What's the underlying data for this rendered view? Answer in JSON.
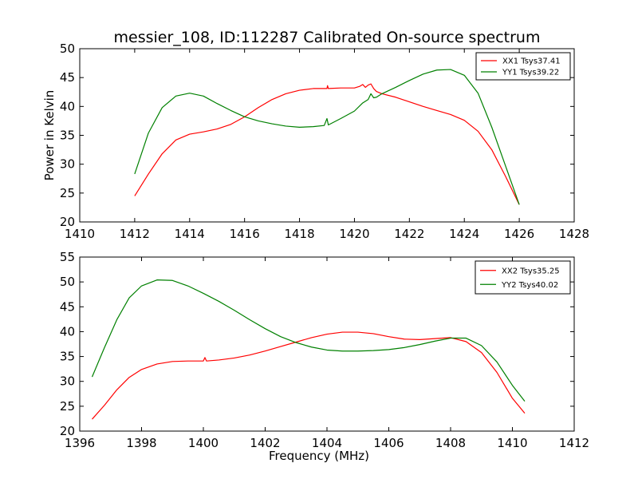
{
  "title": "messier_108, ID:112287 Calibrated On-source spectrum",
  "chart_data": [
    {
      "type": "line",
      "xlabel": "",
      "ylabel": "Power in Kelvin",
      "xlim": [
        1410,
        1428
      ],
      "ylim": [
        20,
        50
      ],
      "xticks": [
        1410,
        1412,
        1414,
        1416,
        1418,
        1420,
        1422,
        1424,
        1426,
        1428
      ],
      "yticks": [
        20,
        25,
        30,
        35,
        40,
        45,
        50
      ],
      "legend_position": "top-right",
      "series": [
        {
          "name": "XX1 Tsys37.41",
          "color": "#ff0000",
          "x": [
            1412,
            1412.5,
            1413,
            1413.5,
            1414,
            1414.5,
            1415,
            1415.5,
            1416,
            1416.5,
            1417,
            1417.5,
            1418,
            1418.5,
            1419,
            1419.02,
            1419.05,
            1419.5,
            1420,
            1420.2,
            1420.3,
            1420.4,
            1420.5,
            1420.6,
            1420.7,
            1420.8,
            1421,
            1421.5,
            1422,
            1422.5,
            1423,
            1423.5,
            1424,
            1424.5,
            1425,
            1425.5,
            1426
          ],
          "y": [
            24.5,
            28.3,
            31.8,
            34.2,
            35.2,
            35.6,
            36.1,
            36.9,
            38.2,
            39.8,
            41.2,
            42.2,
            42.8,
            43.1,
            43.1,
            43.6,
            43.1,
            43.2,
            43.2,
            43.5,
            43.8,
            43.3,
            43.7,
            43.9,
            43.1,
            42.6,
            42.2,
            41.6,
            40.8,
            40.0,
            39.3,
            38.6,
            37.6,
            35.7,
            32.5,
            27.9,
            23.0
          ]
        },
        {
          "name": "YY1 Tsys39.22",
          "color": "#008000",
          "x": [
            1412,
            1412.5,
            1413,
            1413.5,
            1414,
            1414.5,
            1415,
            1415.5,
            1416,
            1416.5,
            1417,
            1417.5,
            1418,
            1418.5,
            1418.9,
            1419,
            1419.05,
            1419.5,
            1420,
            1420.3,
            1420.5,
            1420.6,
            1420.7,
            1420.8,
            1421,
            1421.5,
            1422,
            1422.5,
            1423,
            1423.5,
            1424,
            1424.5,
            1425,
            1425.5,
            1426
          ],
          "y": [
            28.3,
            35.4,
            39.8,
            41.8,
            42.3,
            41.8,
            40.5,
            39.3,
            38.2,
            37.5,
            37.0,
            36.6,
            36.4,
            36.5,
            36.7,
            37.9,
            36.8,
            37.9,
            39.2,
            40.6,
            41.2,
            42.2,
            41.5,
            41.6,
            42.2,
            43.3,
            44.5,
            45.6,
            46.3,
            46.4,
            45.4,
            42.3,
            36.4,
            29.7,
            23.0
          ]
        }
      ]
    },
    {
      "type": "line",
      "xlabel": "Frequency (MHz)",
      "ylabel": "",
      "xlim": [
        1396,
        1412
      ],
      "ylim": [
        20,
        55
      ],
      "xticks": [
        1396,
        1398,
        1400,
        1402,
        1404,
        1406,
        1408,
        1410,
        1412
      ],
      "yticks": [
        20,
        25,
        30,
        35,
        40,
        45,
        50,
        55
      ],
      "legend_position": "top-right",
      "series": [
        {
          "name": "XX2 Tsys35.25",
          "color": "#ff0000",
          "x": [
            1396.4,
            1396.8,
            1397.2,
            1397.6,
            1398,
            1398.5,
            1399,
            1399.5,
            1400,
            1400.05,
            1400.1,
            1400.5,
            1401,
            1401.5,
            1402,
            1402.5,
            1403,
            1403.5,
            1404,
            1404.5,
            1405,
            1405.5,
            1406,
            1406.5,
            1407,
            1407.5,
            1408,
            1408.5,
            1409,
            1409.5,
            1410,
            1410.4
          ],
          "y": [
            22.4,
            25.2,
            28.3,
            30.8,
            32.4,
            33.5,
            34.0,
            34.1,
            34.1,
            34.8,
            34.1,
            34.3,
            34.7,
            35.3,
            36.1,
            37.0,
            37.9,
            38.8,
            39.5,
            39.9,
            39.9,
            39.6,
            39.0,
            38.5,
            38.4,
            38.6,
            38.8,
            38.0,
            35.8,
            31.8,
            26.6,
            23.6
          ]
        },
        {
          "name": "YY2 Tsys40.02",
          "color": "#008000",
          "x": [
            1396.4,
            1396.8,
            1397.2,
            1397.6,
            1398,
            1398.5,
            1399,
            1399.5,
            1400,
            1400.5,
            1401,
            1401.5,
            1402,
            1402.5,
            1403,
            1403.5,
            1404,
            1404.5,
            1405,
            1405.5,
            1406,
            1406.5,
            1407,
            1407.5,
            1408,
            1408.5,
            1409,
            1409.5,
            1410,
            1410.4
          ],
          "y": [
            30.9,
            36.8,
            42.4,
            46.8,
            49.2,
            50.4,
            50.3,
            49.2,
            47.7,
            46.1,
            44.3,
            42.4,
            40.6,
            39.0,
            37.8,
            36.9,
            36.3,
            36.1,
            36.1,
            36.2,
            36.4,
            36.8,
            37.4,
            38.1,
            38.7,
            38.7,
            37.2,
            33.9,
            29.2,
            26.0
          ]
        }
      ]
    }
  ]
}
